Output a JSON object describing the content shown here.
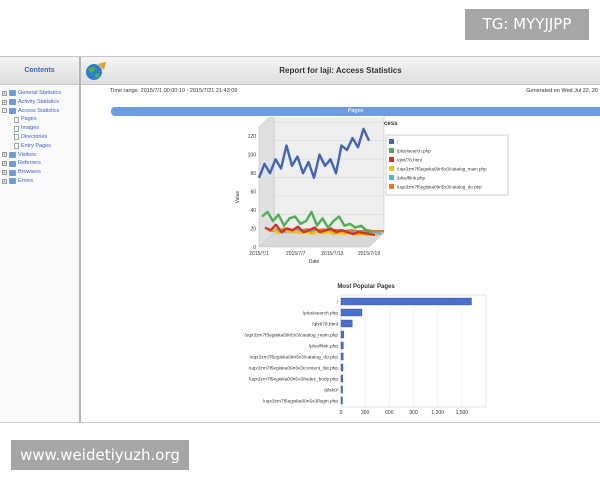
{
  "watermarks": {
    "top": "TG: MYYJJPP",
    "bottom": "www.weidetiyuzh.org"
  },
  "sidebar": {
    "header": "Contents",
    "items": [
      {
        "label": "General Statistics",
        "level": 0,
        "expander": "+"
      },
      {
        "label": "Activity Statistics",
        "level": 0,
        "expander": "+"
      },
      {
        "label": "Access Statistics",
        "level": 0,
        "expander": "-"
      },
      {
        "label": "Pages",
        "level": 1
      },
      {
        "label": "Images",
        "level": 1
      },
      {
        "label": "Directories",
        "level": 1
      },
      {
        "label": "Entry Pages",
        "level": 1
      },
      {
        "label": "Visitors",
        "level": 0,
        "expander": "+"
      },
      {
        "label": "Referrers",
        "level": 0,
        "expander": "+"
      },
      {
        "label": "Browsers",
        "level": 0,
        "expander": "+"
      },
      {
        "label": "Errors",
        "level": 0,
        "expander": "+"
      }
    ]
  },
  "header": {
    "title": "Report for laji: Access Statistics",
    "time_range": "Time range: 2015/7/1 00:00:10 - 2015/7/21 21:43:09",
    "generated": "Generated on Wed Jul 22, 20"
  },
  "section": {
    "title": "Pages"
  },
  "chart_data": [
    {
      "type": "line",
      "title": "Daily Page Access",
      "xlabel": "Date",
      "ylabel": "Value",
      "x_ticks": [
        "2015/7/1",
        "2015/7/7",
        "2015/7/13",
        "2015/7/19"
      ],
      "y_ticks": [
        0,
        20,
        40,
        60,
        80,
        100,
        120
      ],
      "ylim": [
        0,
        130
      ],
      "series": [
        {
          "name": "/",
          "color": "#3f64b8",
          "values": [
            75,
            90,
            80,
            95,
            85,
            110,
            88,
            98,
            80,
            92,
            75,
            100,
            88,
            95,
            80,
            110,
            105,
            118,
            108,
            128,
            115
          ]
        },
        {
          "name": "/plus/search.php",
          "color": "#4caf50",
          "values": [
            30,
            35,
            25,
            32,
            20,
            28,
            30,
            22,
            25,
            35,
            20,
            28,
            18,
            25,
            30,
            20,
            22,
            18,
            20,
            15,
            12
          ]
        },
        {
          "name": "/qlxt/78.html",
          "color": "#d0312d",
          "values": [
            15,
            12,
            18,
            10,
            14,
            12,
            16,
            10,
            12,
            15,
            10,
            12,
            14,
            10,
            12,
            10,
            8,
            10,
            9,
            8,
            7
          ]
        },
        {
          "name": "/uqx3zm7f5egiska09n5x3/catalog_main.php",
          "color": "#f2c200",
          "values": [
            8,
            10,
            6,
            9,
            7,
            8,
            6,
            7,
            5,
            8,
            6,
            7,
            5,
            6,
            5,
            6,
            4,
            5,
            4,
            5,
            4
          ]
        },
        {
          "name": "/plus/flink.php",
          "color": "#4fb3e8",
          "values": [
            5,
            6,
            4,
            5,
            4,
            6,
            5,
            4,
            5,
            4,
            5,
            3,
            4,
            5,
            3,
            4,
            3,
            4,
            3,
            3,
            2
          ]
        },
        {
          "name": "/uqx3zm7f5egiska09n5x3/catalog_do.php",
          "color": "#e07b20",
          "values": [
            4,
            3,
            5,
            3,
            4,
            3,
            4,
            3,
            3,
            4,
            2,
            3,
            3,
            2,
            3,
            2,
            2,
            3,
            2,
            2,
            2
          ]
        }
      ]
    },
    {
      "type": "bar",
      "title": "Most Popular Pages",
      "categories": [
        "/",
        "/plus/search.php",
        "/qlxt/78.html",
        "/uqx3zm7f5egiska09n5x3/catalog_main.php",
        "/plus/flink.php",
        "/uqx3zm7f5egiska09n5x3/catalog_do.php",
        "/uqx3zm7f5egiska09n5x3/content_list.php",
        "/uqx3zm7f5egiska09n5x3/index_body.php",
        "/plsk0/",
        "/uqx3zm7f5egiska09n5x3/login.php"
      ],
      "values": [
        1620,
        260,
        140,
        35,
        30,
        28,
        25,
        22,
        20,
        18
      ],
      "x_ticks": [
        "0",
        "300",
        "600",
        "900",
        "1,200",
        "1,500"
      ],
      "xlim": [
        0,
        1800
      ],
      "color": "#4a6fcb"
    }
  ]
}
